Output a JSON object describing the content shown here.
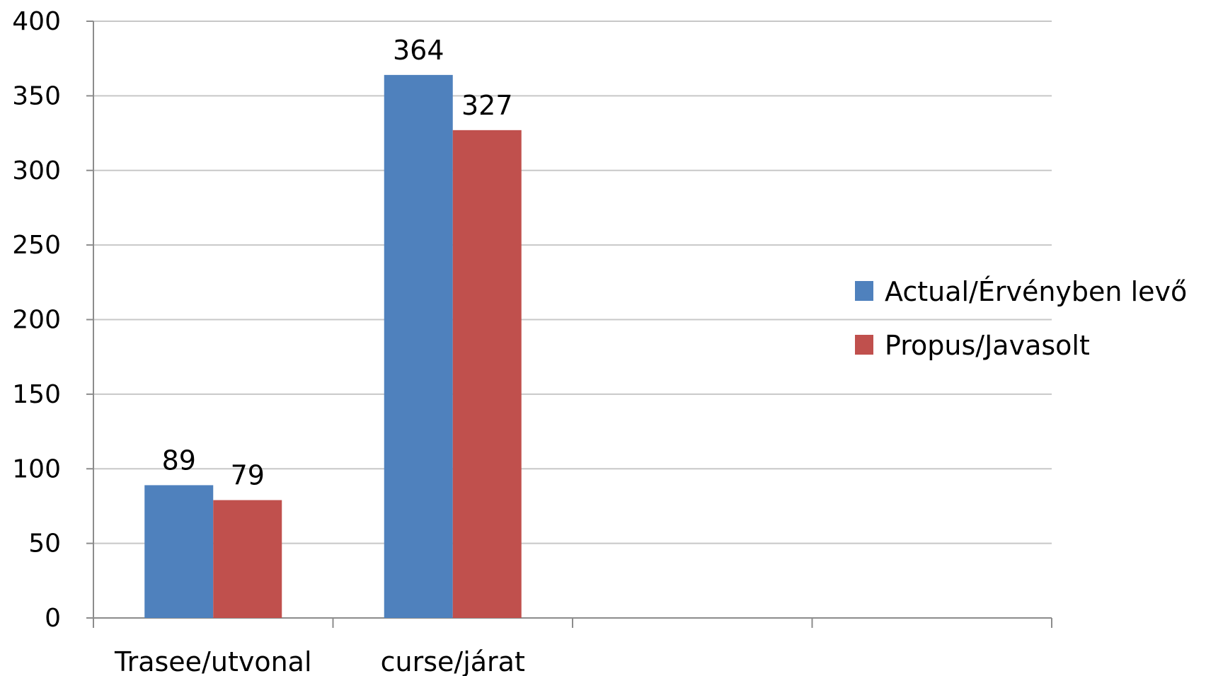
{
  "chart_data": {
    "type": "bar",
    "categories": [
      "Trasee/utvonal",
      "curse/járat",
      "",
      ""
    ],
    "series": [
      {
        "name": "Actual/Érvényben levő",
        "values": [
          89,
          364,
          null,
          null
        ],
        "color": "#4F81BD"
      },
      {
        "name": "Propus/Javasolt",
        "values": [
          79,
          327,
          null,
          null
        ],
        "color": "#C0504D"
      }
    ],
    "ylim": [
      0,
      400
    ],
    "yticks": [
      "0",
      "50",
      "100",
      "150",
      "200",
      "250",
      "300",
      "350",
      "400"
    ],
    "grid": true,
    "legend_position": "right",
    "xlabel": "",
    "ylabel": "",
    "title": ""
  }
}
